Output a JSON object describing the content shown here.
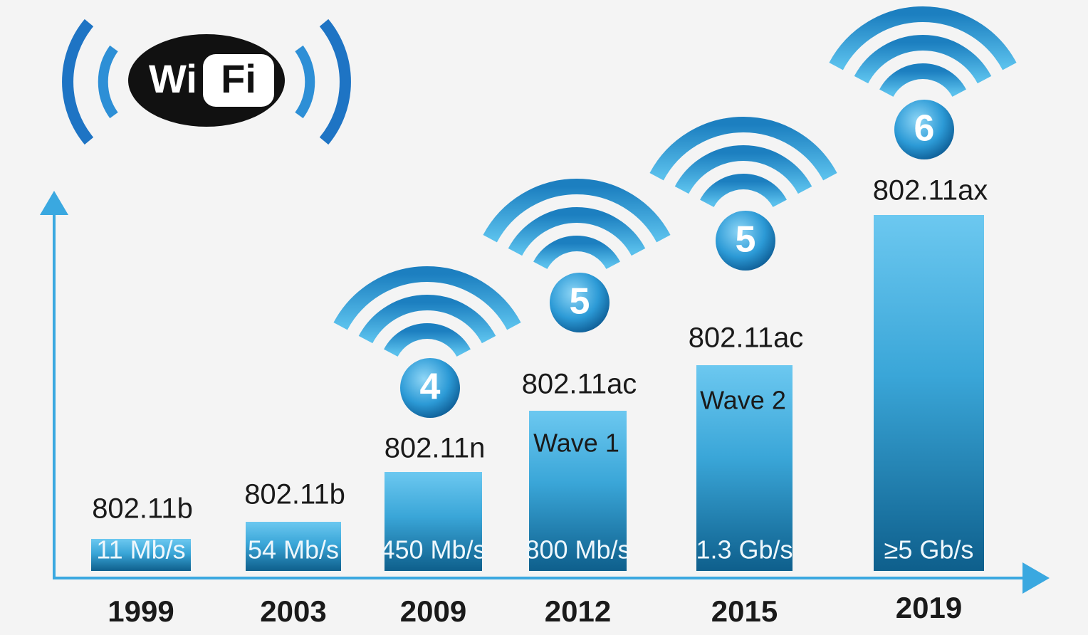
{
  "logo": {
    "left": "Wi",
    "right": "Fi"
  },
  "items": [
    {
      "standard": "802.11b",
      "speed": "11 Mb/s",
      "year": "1999"
    },
    {
      "standard": "802.11b",
      "speed": "54 Mb/s",
      "year": "2003"
    },
    {
      "standard": "802.11n",
      "speed": "450 Mb/s",
      "year": "2009",
      "generation": "4"
    },
    {
      "standard": "802.11ac",
      "wave": "Wave 1",
      "speed": "800 Mb/s",
      "year": "2012",
      "generation": "5"
    },
    {
      "standard": "802.11ac",
      "wave": "Wave 2",
      "speed": "1.3 Gb/s",
      "year": "2015",
      "generation": "5"
    },
    {
      "standard": "802.11ax",
      "speed": "≥5 Gb/s",
      "year": "2019",
      "generation": "6"
    }
  ]
}
